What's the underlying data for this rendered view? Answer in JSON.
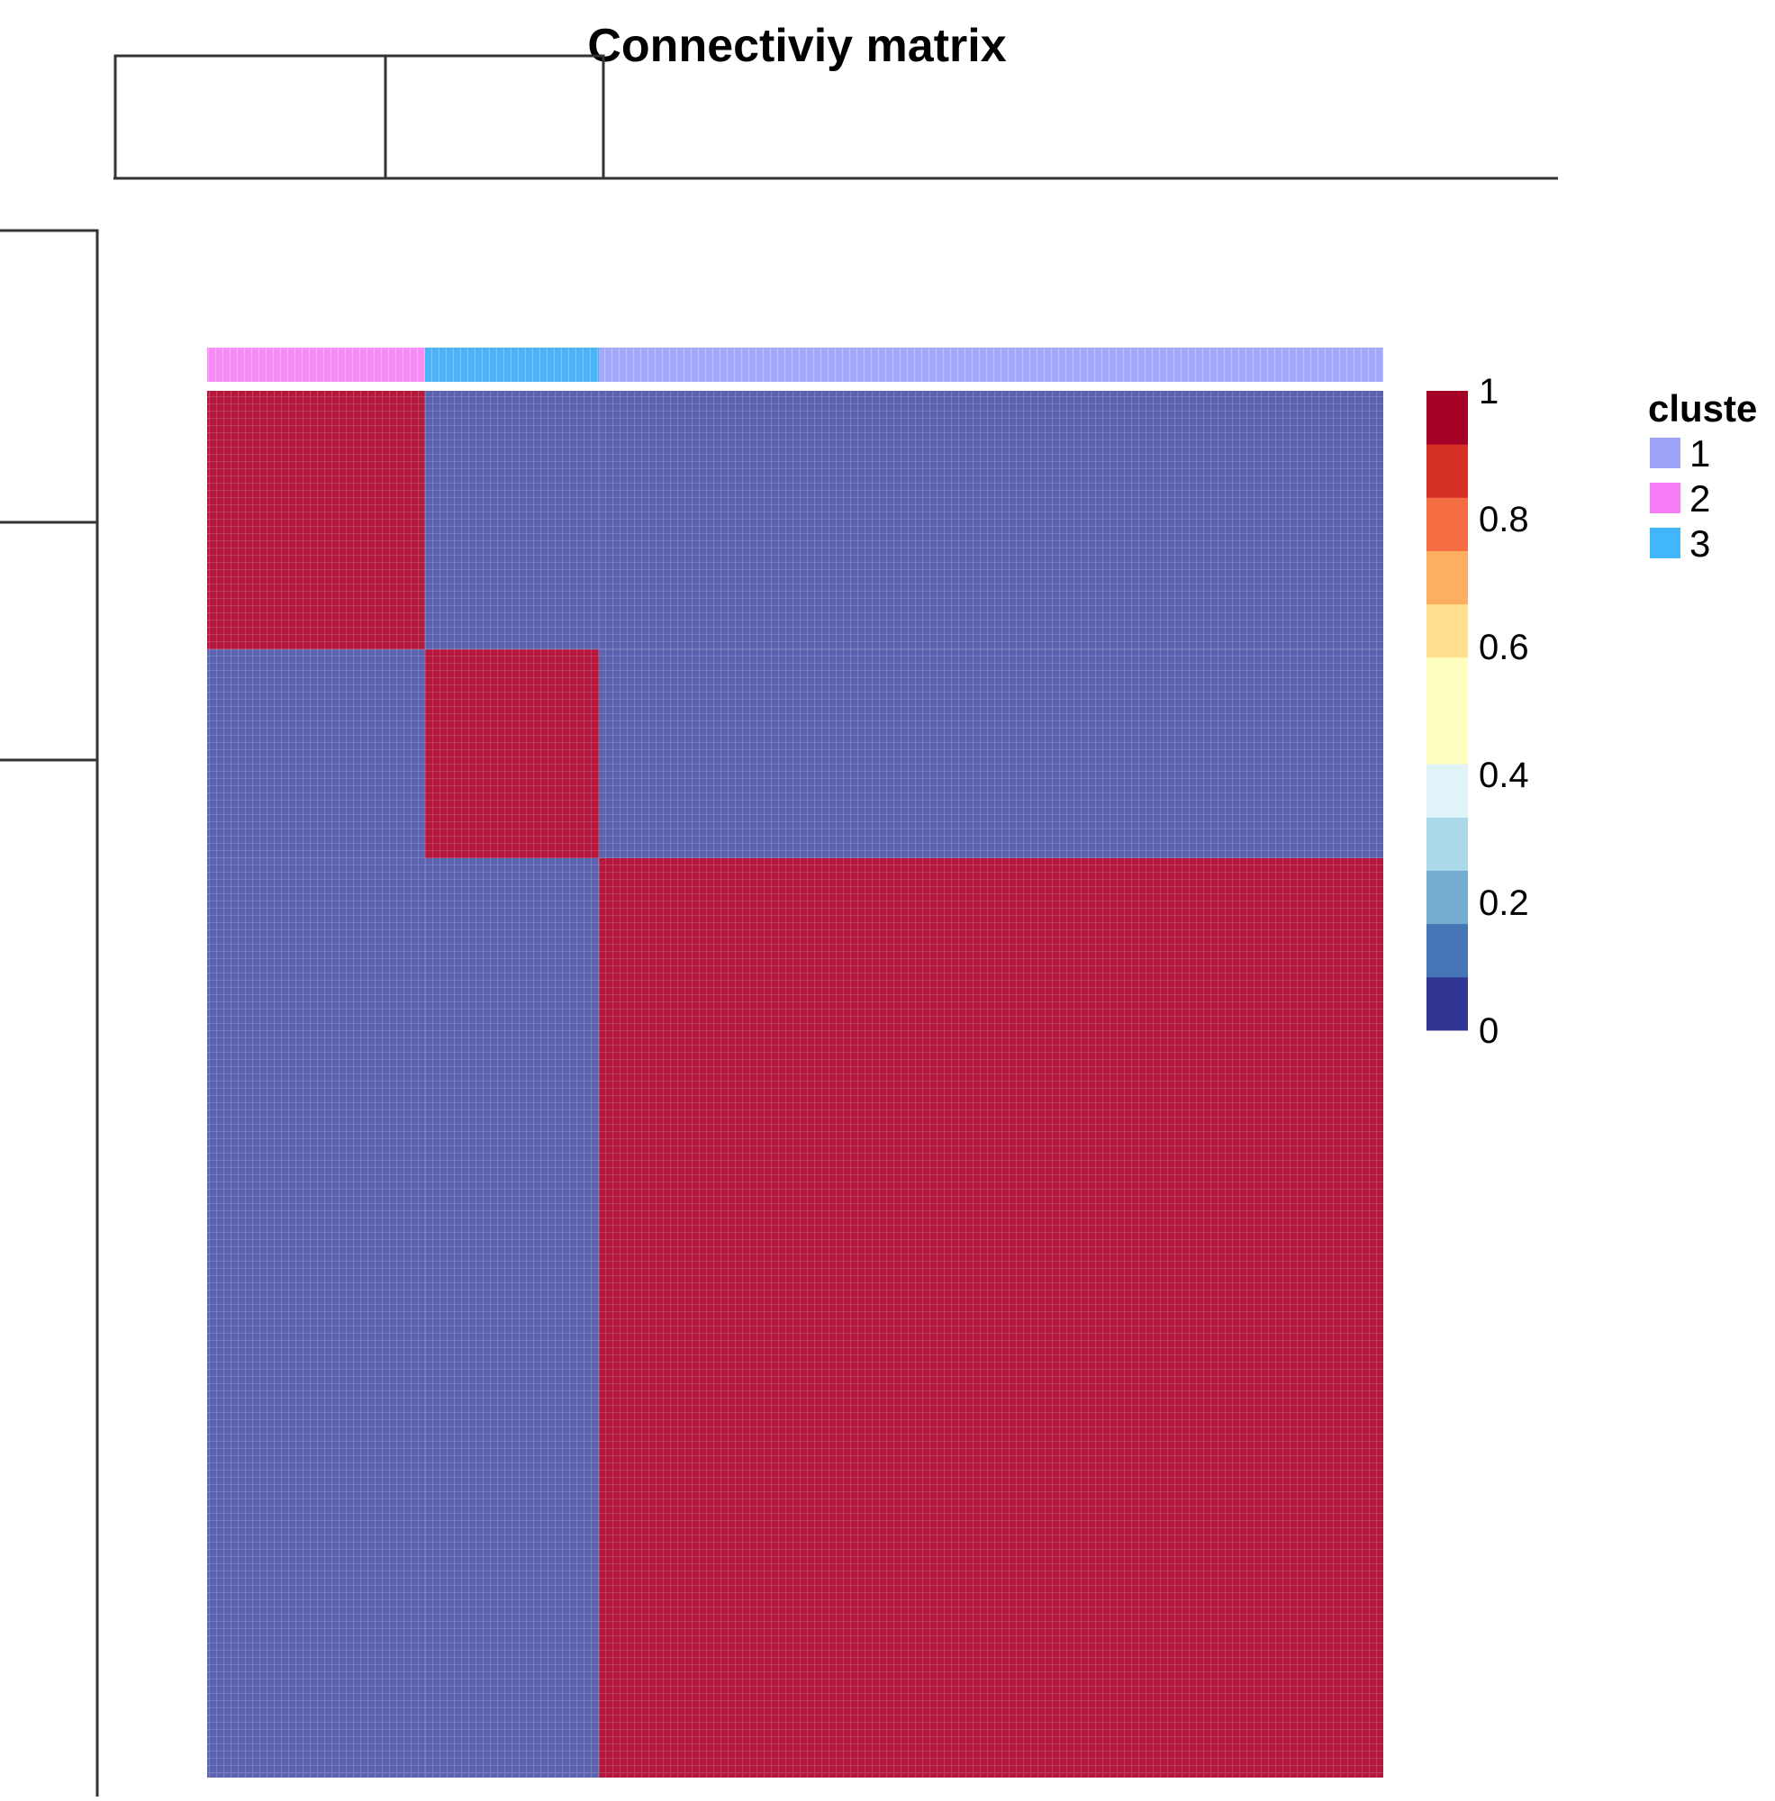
{
  "chart_data": {
    "type": "heatmap",
    "title": "Connectiviy matrix",
    "clusters_order": [
      "2",
      "3",
      "1"
    ],
    "cluster_sizes": [
      25,
      20,
      90
    ],
    "blocks": [
      {
        "rows": "2",
        "cols": "2",
        "value": 1
      },
      {
        "rows": "2",
        "cols": "3",
        "value": 0
      },
      {
        "rows": "2",
        "cols": "1",
        "value": 0
      },
      {
        "rows": "3",
        "cols": "2",
        "value": 0
      },
      {
        "rows": "3",
        "cols": "3",
        "value": 1
      },
      {
        "rows": "3",
        "cols": "1",
        "value": 0
      },
      {
        "rows": "1",
        "cols": "2",
        "value": 0
      },
      {
        "rows": "1",
        "cols": "3",
        "value": 0
      },
      {
        "rows": "1",
        "cols": "1",
        "value": 1
      }
    ],
    "colorbar": {
      "range": [
        0,
        1
      ],
      "ticks": [
        "0",
        "0.2",
        "0.4",
        "0.6",
        "0.8",
        "1"
      ],
      "tick_values": [
        0,
        0.2,
        0.4,
        0.6,
        0.8,
        1
      ],
      "colors": [
        "#313695",
        "#4575b4",
        "#74add1",
        "#abd9e9",
        "#e0f3f8",
        "#ffffbf",
        "#fee090",
        "#fdae61",
        "#f46d43",
        "#d73027",
        "#a50026"
      ],
      "steps": 12
    },
    "cell_colors": {
      "high": "#b5173d",
      "low": "#5c64b2"
    },
    "legend": {
      "title": "cluste",
      "entries": [
        {
          "label": "1",
          "color": "#9ea3f8"
        },
        {
          "label": "2",
          "color": "#f67df6"
        },
        {
          "label": "3",
          "color": "#41b6fb"
        }
      ]
    },
    "annotation_colors": {
      "1": "#a5a9fa",
      "2": "#f68cf6",
      "3": "#4cb4f5"
    }
  }
}
